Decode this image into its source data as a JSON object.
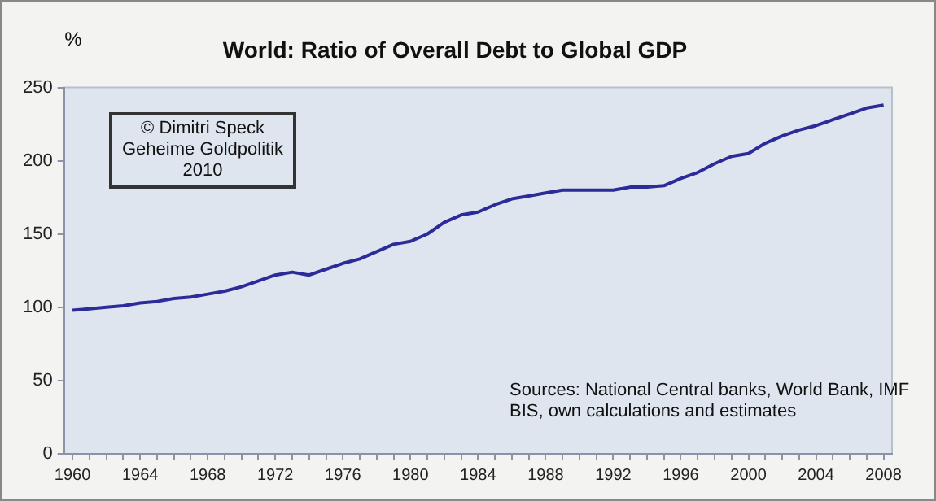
{
  "chart_data": {
    "type": "line",
    "title": "World: Ratio of Overall Debt to Global GDP",
    "ylabel": "%",
    "annotations": [
      "© Dimitri Speck\nGeheime Goldpolitik\n2010",
      "Sources: National Central banks, World Bank, IMF\nBIS, own calculations and estimates"
    ],
    "x": [
      1960,
      1961,
      1962,
      1963,
      1964,
      1965,
      1966,
      1967,
      1968,
      1969,
      1970,
      1971,
      1972,
      1973,
      1974,
      1975,
      1976,
      1977,
      1978,
      1979,
      1980,
      1981,
      1982,
      1983,
      1984,
      1985,
      1986,
      1987,
      1988,
      1989,
      1990,
      1991,
      1992,
      1993,
      1994,
      1995,
      1996,
      1997,
      1998,
      1999,
      2000,
      2001,
      2002,
      2003,
      2004,
      2005,
      2006,
      2007,
      2008
    ],
    "series": [
      {
        "color": "#2b2b9a",
        "values": [
          98,
          99,
          100,
          101,
          103,
          104,
          106,
          107,
          109,
          111,
          114,
          118,
          122,
          124,
          122,
          126,
          130,
          133,
          138,
          143,
          145,
          150,
          158,
          163,
          165,
          170,
          174,
          176,
          178,
          180,
          180,
          180,
          180,
          182,
          182,
          183,
          188,
          192,
          198,
          203,
          205,
          212,
          217,
          221,
          224,
          228,
          232,
          236,
          238
        ]
      }
    ],
    "xlim": [
      1959.5,
      2008.5
    ],
    "xticks": [
      1960,
      {
        "value": 1961,
        "label": null
      },
      {
        "value": 1962,
        "label": null
      },
      {
        "value": 1963,
        "label": null
      },
      1964,
      {
        "value": 1965,
        "label": null
      },
      {
        "value": 1966,
        "label": null
      },
      {
        "value": 1967,
        "label": null
      },
      1968,
      {
        "value": 1969,
        "label": null
      },
      {
        "value": 1970,
        "label": null
      },
      {
        "value": 1971,
        "label": null
      },
      1972,
      {
        "value": 1973,
        "label": null
      },
      {
        "value": 1974,
        "label": null
      },
      {
        "value": 1975,
        "label": null
      },
      1976,
      {
        "value": 1977,
        "label": null
      },
      {
        "value": 1978,
        "label": null
      },
      {
        "value": 1979,
        "label": null
      },
      1980,
      {
        "value": 1981,
        "label": null
      },
      {
        "value": 1982,
        "label": null
      },
      {
        "value": 1983,
        "label": null
      },
      1984,
      {
        "value": 1985,
        "label": null
      },
      {
        "value": 1986,
        "label": null
      },
      {
        "value": 1987,
        "label": null
      },
      1988,
      {
        "value": 1989,
        "label": null
      },
      {
        "value": 1990,
        "label": null
      },
      {
        "value": 1991,
        "label": null
      },
      1992,
      {
        "value": 1993,
        "label": null
      },
      {
        "value": 1994,
        "label": null
      },
      {
        "value": 1995,
        "label": null
      },
      1996,
      {
        "value": 1997,
        "label": null
      },
      {
        "value": 1998,
        "label": null
      },
      {
        "value": 1999,
        "label": null
      },
      2000,
      {
        "value": 2001,
        "label": null
      },
      {
        "value": 2002,
        "label": null
      },
      {
        "value": 2003,
        "label": null
      },
      2004,
      {
        "value": 2005,
        "label": null
      },
      {
        "value": 2006,
        "label": null
      },
      {
        "value": 2007,
        "label": null
      },
      2008
    ],
    "ylim": [
      0,
      250
    ],
    "yticks": [
      0,
      50,
      100,
      150,
      200,
      250
    ],
    "grid": false,
    "legend": false,
    "marker": "none",
    "line_style": "solid"
  }
}
